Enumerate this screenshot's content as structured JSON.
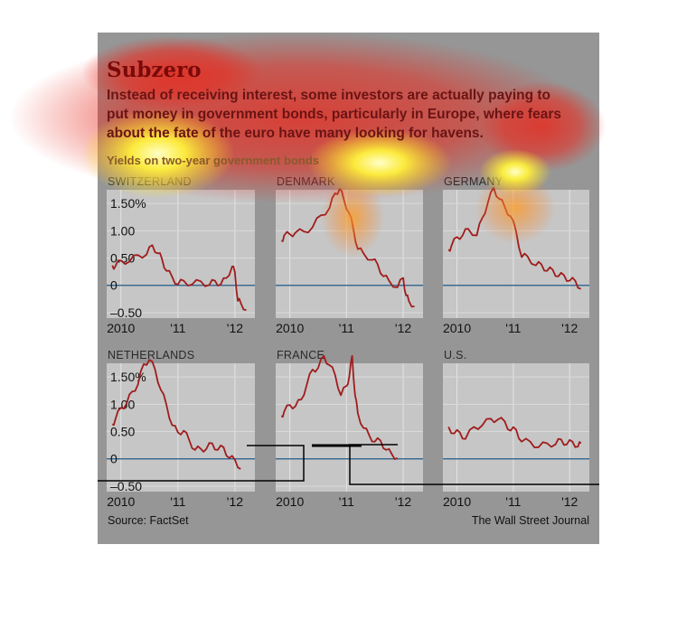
{
  "title": "Subzero",
  "subtitle_lines": [
    "Instead of receiving interest, some investors are actually paying to",
    "put money in government bonds, particularly in Europe, where fears",
    "about the fate of the euro have many looking for havens."
  ],
  "yields_label": "Yields on two-year government bonds",
  "source": "Source: FactSet",
  "credit": "The Wall Street Journal",
  "colors": {
    "background": "#969696",
    "panel": "#c6c6c6",
    "line": "#a01c1c",
    "zero_line": "#1f5a88",
    "overlay_red": "#e8281e",
    "overlay_yellow": "#ffee3c"
  },
  "chart_data": [
    {
      "type": "line",
      "title": "SWITZERLAND",
      "ylim": [
        -0.6,
        1.75
      ],
      "yticks": [
        "1.50%",
        "1.00",
        "0.50",
        "0",
        "–0.50"
      ],
      "xticks": [
        "2010",
        "'11",
        "'12"
      ],
      "series": [
        {
          "x": [
            2009.85,
            2009.9,
            2010.0,
            2010.15,
            2010.3,
            2010.45,
            2010.55,
            2010.65,
            2010.72,
            2010.8,
            2010.9,
            2011.0,
            2011.1,
            2011.25,
            2011.4,
            2011.55,
            2011.65,
            2011.75,
            2011.85,
            2011.95,
            2012.0,
            2012.05,
            2012.1,
            2012.2
          ],
          "y": [
            0.33,
            0.38,
            0.42,
            0.47,
            0.52,
            0.6,
            0.7,
            0.62,
            0.45,
            0.3,
            0.12,
            0.05,
            0.05,
            0.05,
            0.04,
            0.04,
            0.05,
            0.05,
            0.1,
            0.38,
            0.2,
            -0.25,
            -0.35,
            -0.42
          ]
        }
      ]
    },
    {
      "type": "line",
      "title": "DENMARK",
      "ylim": [
        -0.6,
        1.75
      ],
      "yticks": [
        "1.50%",
        "1.00",
        "0.50",
        "0",
        "–0.50"
      ],
      "xticks": [
        "2010",
        "'11",
        "'12"
      ],
      "series": [
        {
          "x": [
            2009.85,
            2009.9,
            2010.0,
            2010.1,
            2010.25,
            2010.4,
            2010.55,
            2010.7,
            2010.8,
            2010.88,
            2010.95,
            2011.05,
            2011.12,
            2011.2,
            2011.3,
            2011.45,
            2011.55,
            2011.65,
            2011.75,
            2011.9,
            2012.0,
            2012.05,
            2012.1,
            2012.2
          ],
          "y": [
            0.78,
            0.95,
            0.9,
            1.0,
            0.95,
            1.1,
            1.25,
            1.45,
            1.65,
            1.8,
            1.55,
            1.35,
            1.0,
            0.7,
            0.55,
            0.5,
            0.35,
            0.2,
            0.05,
            0.0,
            0.1,
            -0.15,
            -0.32,
            -0.35
          ]
        }
      ]
    },
    {
      "type": "line",
      "title": "GERMANY",
      "ylim": [
        -0.6,
        1.75
      ],
      "yticks": [
        "1.50%",
        "1.00",
        "0.50",
        "0",
        "–0.50"
      ],
      "xticks": [
        "2010",
        "'11",
        "'12"
      ],
      "series": [
        {
          "x": [
            2009.85,
            2009.9,
            2010.0,
            2010.1,
            2010.2,
            2010.35,
            2010.45,
            2010.55,
            2010.65,
            2010.75,
            2010.85,
            2010.95,
            2011.05,
            2011.15,
            2011.25,
            2011.4,
            2011.5,
            2011.6,
            2011.7,
            2011.8,
            2011.9,
            2012.0,
            2012.1,
            2012.2
          ],
          "y": [
            0.62,
            0.75,
            0.85,
            0.95,
            1.0,
            0.95,
            1.2,
            1.55,
            1.75,
            1.62,
            1.4,
            1.3,
            0.95,
            0.55,
            0.5,
            0.4,
            0.35,
            0.3,
            0.25,
            0.2,
            0.15,
            0.12,
            0.05,
            -0.03
          ]
        }
      ]
    },
    {
      "type": "line",
      "title": "NETHERLANDS",
      "ylim": [
        -0.6,
        1.75
      ],
      "yticks": [
        "1.50%",
        "1.00",
        "0.50",
        "0",
        "–0.50"
      ],
      "xticks": [
        "2010",
        "'11",
        "'12"
      ],
      "series": [
        {
          "x": [
            2009.85,
            2009.9,
            2010.0,
            2010.1,
            2010.2,
            2010.3,
            2010.4,
            2010.5,
            2010.6,
            2010.7,
            2010.8,
            2010.9,
            2011.0,
            2011.1,
            2011.2,
            2011.3,
            2011.4,
            2011.5,
            2011.6,
            2011.7,
            2011.8,
            2011.9,
            2012.0,
            2012.1
          ],
          "y": [
            0.6,
            0.75,
            0.9,
            1.05,
            1.2,
            1.4,
            1.7,
            1.85,
            1.6,
            1.3,
            0.95,
            0.65,
            0.45,
            0.55,
            0.3,
            0.2,
            0.15,
            0.22,
            0.25,
            0.2,
            0.18,
            0.05,
            -0.05,
            -0.15
          ]
        }
      ]
    },
    {
      "type": "line",
      "title": "FRANCE",
      "ylim": [
        -0.6,
        1.75
      ],
      "yticks": [
        "1.50%",
        "1.00",
        "0.50",
        "0",
        "–0.50"
      ],
      "xticks": [
        "2010",
        "'11",
        "'12"
      ],
      "series": [
        {
          "x": [
            2009.85,
            2009.9,
            2010.0,
            2010.1,
            2010.2,
            2010.3,
            2010.4,
            2010.5,
            2010.6,
            2010.7,
            2010.8,
            2010.9,
            2011.0,
            2011.05,
            2011.1,
            2011.15,
            2011.2,
            2011.3,
            2011.4,
            2011.5,
            2011.6,
            2011.7,
            2011.8,
            2011.9
          ],
          "y": [
            0.75,
            0.9,
            0.95,
            1.0,
            1.05,
            1.4,
            1.6,
            1.7,
            1.85,
            1.75,
            1.5,
            1.2,
            1.3,
            1.55,
            1.85,
            1.2,
            0.8,
            0.6,
            0.4,
            0.35,
            0.3,
            0.2,
            0.05,
            0.05
          ]
        }
      ]
    },
    {
      "type": "line",
      "title": "U.S.",
      "ylim": [
        -0.6,
        1.75
      ],
      "yticks": [
        "1.50%",
        "1.00",
        "0.50",
        "0",
        "–0.50"
      ],
      "xticks": [
        "2010",
        "'11",
        "'12"
      ],
      "series": [
        {
          "x": [
            2009.85,
            2009.95,
            2010.05,
            2010.15,
            2010.3,
            2010.45,
            2010.6,
            2010.72,
            2010.85,
            2010.95,
            2011.05,
            2011.15,
            2011.3,
            2011.45,
            2011.6,
            2011.75,
            2011.85,
            2011.95,
            2012.05,
            2012.15,
            2012.2
          ],
          "y": [
            0.55,
            0.5,
            0.45,
            0.4,
            0.55,
            0.65,
            0.7,
            0.75,
            0.65,
            0.55,
            0.5,
            0.35,
            0.28,
            0.25,
            0.25,
            0.3,
            0.32,
            0.3,
            0.28,
            0.26,
            0.25
          ]
        }
      ]
    }
  ]
}
